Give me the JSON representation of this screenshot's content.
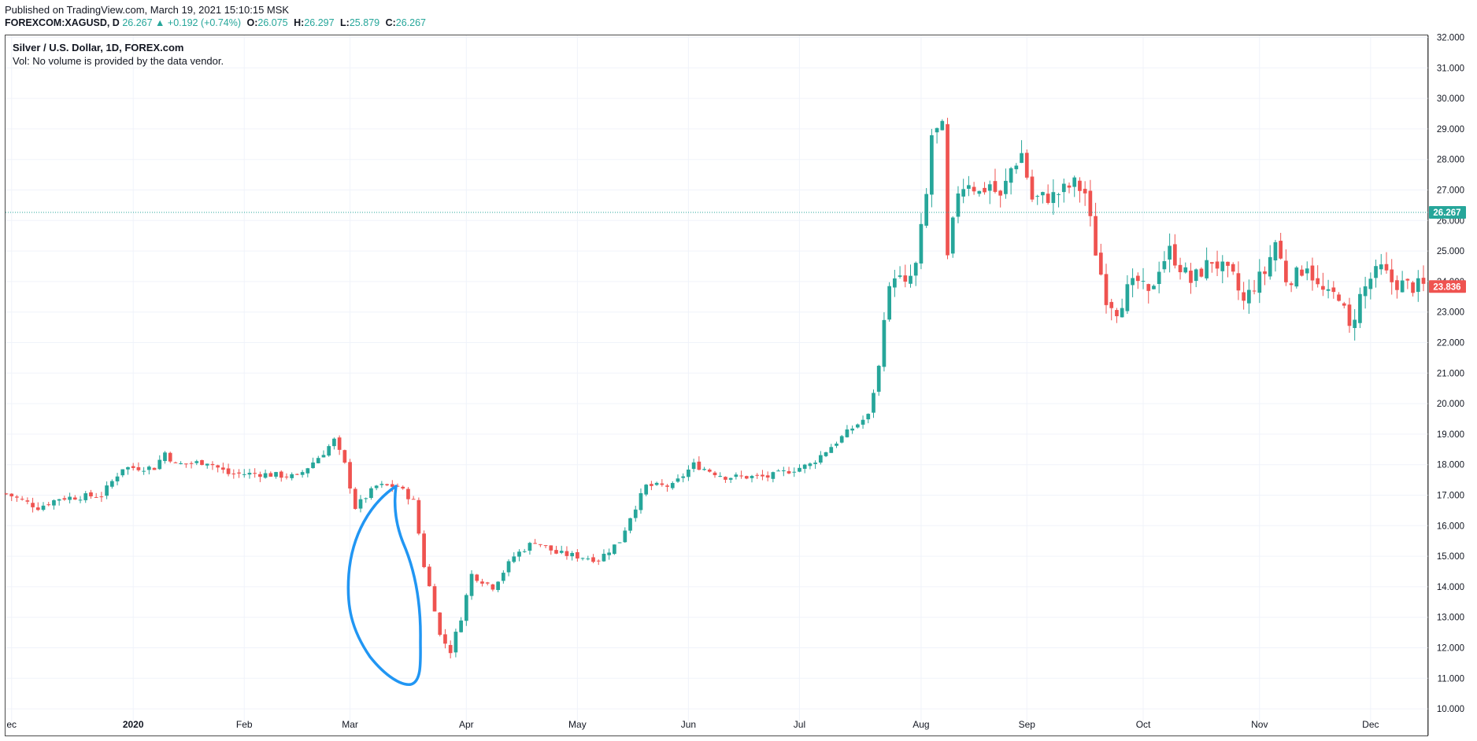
{
  "header": {
    "published": "Published on TradingView.com, March 19, 2021 15:10:15 MSK",
    "symbol": "FOREXCOM:XAGUSD, D",
    "last": "26.267",
    "arrow": "▲",
    "change": "+0.192 (+0.74%)",
    "o_label": "O:",
    "o_value": "26.075",
    "h_label": "H:",
    "h_value": "26.297",
    "l_label": "L:",
    "l_value": "25.879",
    "c_label": "C:",
    "c_value": "26.267"
  },
  "legend": {
    "title": "Silver / U.S. Dollar, 1D, FOREX.com",
    "volume_note": "Vol: No volume is provided by the data vendor."
  },
  "colors": {
    "up": "#26a69a",
    "down": "#ef5350",
    "grid": "#f0f3fa",
    "axis_text": "#131722",
    "annotation": "#2196f3",
    "last_price_label": "#26a69a",
    "secondary_label": "#ef5350"
  },
  "chart_data": {
    "type": "candlestick",
    "title": "Silver / U.S. Dollar, 1D, FOREX.com",
    "ylim": [
      9.8,
      32.2
    ],
    "y_ticks": [
      "10.000",
      "11.000",
      "12.000",
      "13.000",
      "14.000",
      "15.000",
      "16.000",
      "17.000",
      "18.000",
      "19.000",
      "20.000",
      "21.000",
      "22.000",
      "23.000",
      "24.000",
      "25.000",
      "26.000",
      "27.000",
      "28.000",
      "29.000",
      "30.000",
      "31.000",
      "32.000"
    ],
    "x_ticks": [
      {
        "label": "ec",
        "bar": -9
      },
      {
        "label": "2020",
        "bar": 14
      },
      {
        "label": "Feb",
        "bar": 35
      },
      {
        "label": "Mar",
        "bar": 55
      },
      {
        "label": "Apr",
        "bar": 77
      },
      {
        "label": "May",
        "bar": 98
      },
      {
        "label": "Jun",
        "bar": 119
      },
      {
        "label": "Jul",
        "bar": 140
      },
      {
        "label": "Aug",
        "bar": 163
      },
      {
        "label": "Sep",
        "bar": 183
      },
      {
        "label": "Oct",
        "bar": 205
      },
      {
        "label": "Nov",
        "bar": 227
      },
      {
        "label": "Dec",
        "bar": 248
      }
    ],
    "bar_range": [
      -10,
      258
    ],
    "price_lines": [
      {
        "value": 26.267,
        "label": "26.267",
        "style": "dotted"
      },
      {
        "value": 23.836,
        "label": "23.836",
        "style": "none"
      }
    ],
    "anchors": [
      [
        -10,
        17.05
      ],
      [
        -4,
        16.6
      ],
      [
        0,
        16.9
      ],
      [
        8,
        17.0
      ],
      [
        12,
        17.9
      ],
      [
        18,
        17.9
      ],
      [
        20,
        18.4
      ],
      [
        22,
        18.0
      ],
      [
        28,
        18.1
      ],
      [
        32,
        17.7
      ],
      [
        38,
        17.7
      ],
      [
        45,
        17.6
      ],
      [
        50,
        18.4
      ],
      [
        52,
        18.8
      ],
      [
        54,
        18.0
      ],
      [
        56,
        16.6
      ],
      [
        60,
        17.3
      ],
      [
        64,
        17.3
      ],
      [
        67,
        16.8
      ],
      [
        69,
        14.7
      ],
      [
        71,
        13.3
      ],
      [
        72,
        12.4
      ],
      [
        74,
        11.9
      ],
      [
        76,
        13.0
      ],
      [
        78,
        14.4
      ],
      [
        82,
        14.0
      ],
      [
        86,
        15.0
      ],
      [
        90,
        15.5
      ],
      [
        94,
        15.1
      ],
      [
        98,
        15.0
      ],
      [
        102,
        14.9
      ],
      [
        106,
        15.5
      ],
      [
        108,
        16.3
      ],
      [
        111,
        17.3
      ],
      [
        116,
        17.3
      ],
      [
        120,
        18.0
      ],
      [
        126,
        17.6
      ],
      [
        130,
        17.6
      ],
      [
        134,
        17.6
      ],
      [
        138,
        17.8
      ],
      [
        142,
        18.0
      ],
      [
        146,
        18.6
      ],
      [
        150,
        19.2
      ],
      [
        153,
        19.6
      ],
      [
        155,
        21.2
      ],
      [
        156,
        23.0
      ],
      [
        158,
        24.3
      ],
      [
        160,
        23.8
      ],
      [
        162,
        24.5
      ],
      [
        164,
        26.8
      ],
      [
        165,
        28.8
      ],
      [
        167,
        29.0
      ],
      [
        168,
        24.7
      ],
      [
        170,
        27.0
      ],
      [
        172,
        27.3
      ],
      [
        174,
        26.9
      ],
      [
        176,
        27.2
      ],
      [
        178,
        26.7
      ],
      [
        180,
        27.7
      ],
      [
        182,
        28.2
      ],
      [
        184,
        26.7
      ],
      [
        188,
        26.8
      ],
      [
        192,
        27.2
      ],
      [
        194,
        26.9
      ],
      [
        196,
        25.0
      ],
      [
        198,
        23.5
      ],
      [
        200,
        23.1
      ],
      [
        202,
        23.7
      ],
      [
        204,
        24.0
      ],
      [
        206,
        23.5
      ],
      [
        208,
        24.5
      ],
      [
        210,
        25.0
      ],
      [
        214,
        24.0
      ],
      [
        218,
        24.7
      ],
      [
        222,
        24.1
      ],
      [
        224,
        23.3
      ],
      [
        226,
        23.9
      ],
      [
        228,
        24.3
      ],
      [
        230,
        25.3
      ],
      [
        232,
        24.1
      ],
      [
        234,
        24.2
      ],
      [
        236,
        24.6
      ],
      [
        238,
        23.8
      ],
      [
        240,
        23.5
      ],
      [
        242,
        23.6
      ],
      [
        244,
        22.4
      ],
      [
        246,
        23.5
      ],
      [
        248,
        24.1
      ],
      [
        250,
        24.4
      ],
      [
        252,
        24.0
      ],
      [
        254,
        23.9
      ],
      [
        256,
        23.84
      ]
    ]
  },
  "annotation": {
    "type": "freehand-circle",
    "around": "March 2020 crash"
  }
}
